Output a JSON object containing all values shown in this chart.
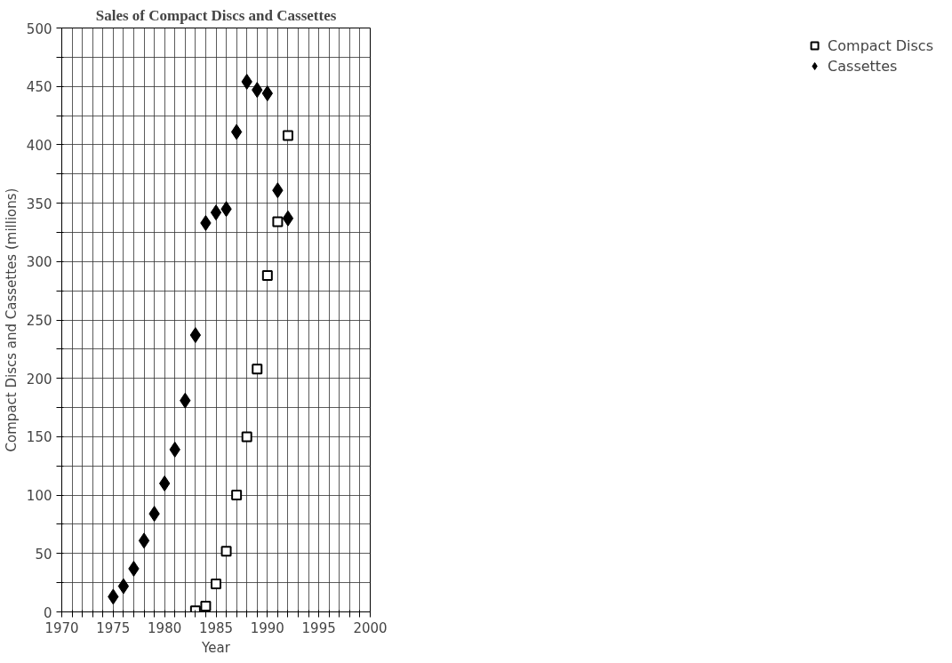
{
  "chart_data": {
    "type": "scatter",
    "title": "Sales of Compact Discs and Cassettes",
    "xlabel": "Year",
    "ylabel": "Compact Discs and Cassettes (millions)",
    "series": [
      {
        "name": "Compact Discs",
        "color": "#000000",
        "marker": "square",
        "x": [
          1983,
          1984,
          1985,
          1986,
          1987,
          1988,
          1989,
          1990,
          1991,
          1992
        ],
        "values": [
          1,
          5,
          24,
          52,
          100,
          150,
          208,
          288,
          334,
          408
        ]
      },
      {
        "name": "Cassettes",
        "color": "#000000",
        "marker": "diamond",
        "x": [
          1975,
          1976,
          1977,
          1978,
          1979,
          1980,
          1981,
          1982,
          1983,
          1984,
          1985,
          1986,
          1987,
          1988,
          1989,
          1990,
          1991,
          1992
        ],
        "values": [
          13,
          22,
          37,
          61,
          84,
          110,
          139,
          181,
          237,
          333,
          342,
          345,
          411,
          454,
          447,
          444,
          361,
          337
        ]
      }
    ],
    "xlim": [
      1970,
      2000
    ],
    "ylim": [
      0,
      500
    ],
    "xticks": [
      1970,
      {
        "value": 1971,
        "label": null
      },
      {
        "value": 1972,
        "label": null
      },
      {
        "value": 1973,
        "label": null
      },
      {
        "value": 1974,
        "label": null
      },
      1975,
      {
        "value": 1976,
        "label": null
      },
      {
        "value": 1977,
        "label": null
      },
      {
        "value": 1978,
        "label": null
      },
      {
        "value": 1979,
        "label": null
      },
      1980,
      {
        "value": 1981,
        "label": null
      },
      {
        "value": 1982,
        "label": null
      },
      {
        "value": 1983,
        "label": null
      },
      {
        "value": 1984,
        "label": null
      },
      1985,
      {
        "value": 1986,
        "label": null
      },
      {
        "value": 1987,
        "label": null
      },
      {
        "value": 1988,
        "label": null
      },
      {
        "value": 1989,
        "label": null
      },
      1990,
      {
        "value": 1991,
        "label": null
      },
      {
        "value": 1992,
        "label": null
      },
      {
        "value": 1993,
        "label": null
      },
      {
        "value": 1994,
        "label": null
      },
      1995,
      {
        "value": 1996,
        "label": null
      },
      {
        "value": 1997,
        "label": null
      },
      {
        "value": 1998,
        "label": null
      },
      {
        "value": 1999,
        "label": null
      },
      2000
    ],
    "yticks": [
      0,
      {
        "value": 25,
        "label": null
      },
      50,
      {
        "value": 75,
        "label": null
      },
      100,
      {
        "value": 125,
        "label": null
      },
      150,
      {
        "value": 175,
        "label": null
      },
      200,
      {
        "value": 225,
        "label": null
      },
      250,
      {
        "value": 275,
        "label": null
      },
      300,
      {
        "value": 325,
        "label": null
      },
      350,
      {
        "value": 375,
        "label": null
      },
      400,
      {
        "value": 425,
        "label": null
      },
      450,
      {
        "value": 475,
        "label": null
      },
      500
    ],
    "grid": true,
    "legend": "right"
  }
}
